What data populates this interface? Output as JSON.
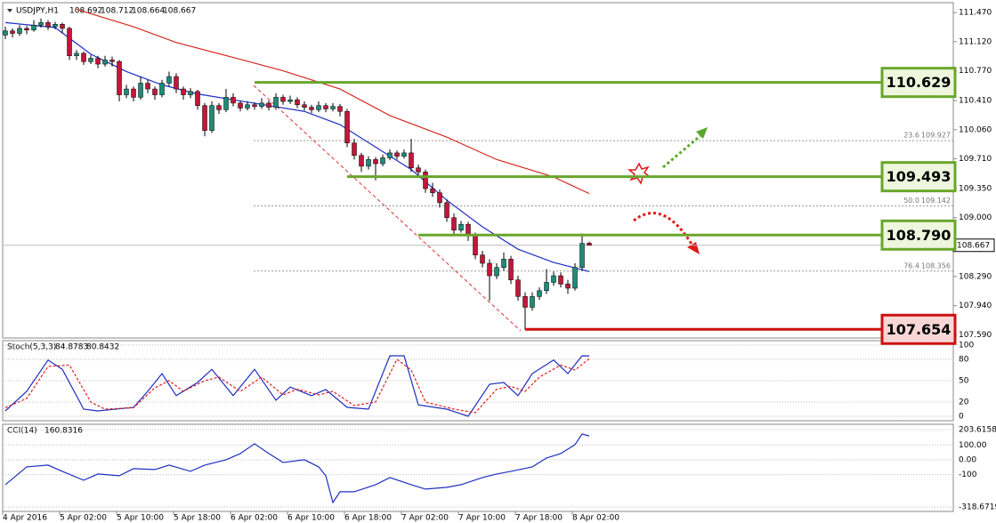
{
  "chart_data": {
    "type": "candlestick",
    "title": "USDJPY,H1",
    "ohlc": [
      108.692,
      108.712,
      108.664,
      108.667
    ],
    "ylim": [
      107.55,
      111.59
    ],
    "yticks": [
      {
        "value": 111.47,
        "label": "111.470"
      },
      {
        "value": 111.12,
        "label": "111.120"
      },
      {
        "value": 110.77,
        "label": "110.770"
      },
      {
        "value": 110.41,
        "label": "110.410"
      },
      {
        "value": 110.06,
        "label": "110.060"
      },
      {
        "value": 109.71,
        "label": "109.710"
      },
      {
        "value": 109.35,
        "label": "109.350"
      },
      {
        "value": 109.0,
        "label": "109.000"
      },
      {
        "value": 108.29,
        "label": "108.290"
      },
      {
        "value": 107.94,
        "label": "107.940"
      },
      {
        "value": 107.59,
        "label": "107.590"
      }
    ],
    "xticks": [
      {
        "value": 0,
        "label": "4 Apr 2016"
      },
      {
        "value": 8,
        "label": "5 Apr 02:00"
      },
      {
        "value": 16,
        "label": "5 Apr 10:00"
      },
      {
        "value": 24,
        "label": "5 Apr 18:00"
      },
      {
        "value": 32,
        "label": "6 Apr 02:00"
      },
      {
        "value": 40,
        "label": "6 Apr 10:00"
      },
      {
        "value": 48,
        "label": "6 Apr 18:00"
      },
      {
        "value": 56,
        "label": "7 Apr 02:00"
      },
      {
        "value": 64,
        "label": "7 Apr 10:00"
      },
      {
        "value": 72,
        "label": "7 Apr 18:00"
      },
      {
        "value": 80,
        "label": "8 Apr 02:00"
      }
    ],
    "up_color": "#1e8c78",
    "down_color": "#c4163a",
    "candles": [
      [
        111.2,
        111.3,
        111.15,
        111.25
      ],
      [
        111.25,
        111.28,
        111.17,
        111.22
      ],
      [
        111.22,
        111.32,
        111.19,
        111.28
      ],
      [
        111.28,
        111.31,
        111.21,
        111.26
      ],
      [
        111.26,
        111.38,
        111.24,
        111.32
      ],
      [
        111.32,
        111.4,
        111.29,
        111.35
      ],
      [
        111.35,
        111.38,
        111.26,
        111.3
      ],
      [
        111.3,
        111.36,
        111.27,
        111.33
      ],
      [
        111.33,
        111.35,
        111.22,
        111.28
      ],
      [
        111.28,
        111.3,
        110.9,
        110.95
      ],
      [
        110.95,
        111.02,
        110.9,
        110.98
      ],
      [
        110.98,
        111.0,
        110.84,
        110.88
      ],
      [
        110.88,
        110.96,
        110.85,
        110.92
      ],
      [
        110.92,
        110.95,
        110.8,
        110.85
      ],
      [
        110.85,
        110.95,
        110.82,
        110.9
      ],
      [
        110.9,
        110.94,
        110.82,
        110.88
      ],
      [
        110.88,
        110.9,
        110.4,
        110.48
      ],
      [
        110.48,
        110.6,
        110.44,
        110.55
      ],
      [
        110.55,
        110.58,
        110.4,
        110.45
      ],
      [
        110.45,
        110.7,
        110.42,
        110.62
      ],
      [
        110.62,
        110.66,
        110.5,
        110.55
      ],
      [
        110.55,
        110.58,
        110.42,
        110.48
      ],
      [
        110.48,
        110.66,
        110.45,
        110.62
      ],
      [
        110.62,
        110.76,
        110.58,
        110.7
      ],
      [
        110.7,
        110.74,
        110.5,
        110.55
      ],
      [
        110.55,
        110.58,
        110.42,
        110.48
      ],
      [
        110.48,
        110.56,
        110.44,
        110.52
      ],
      [
        110.52,
        110.54,
        110.3,
        110.35
      ],
      [
        110.35,
        110.38,
        109.98,
        110.05
      ],
      [
        110.05,
        110.4,
        110.02,
        110.35
      ],
      [
        110.35,
        110.38,
        110.25,
        110.3
      ],
      [
        110.3,
        110.55,
        110.27,
        110.45
      ],
      [
        110.45,
        110.5,
        110.34,
        110.38
      ],
      [
        110.38,
        110.41,
        110.28,
        110.32
      ],
      [
        110.32,
        110.4,
        110.29,
        110.36
      ],
      [
        110.36,
        110.39,
        110.3,
        110.34
      ],
      [
        110.34,
        110.44,
        110.31,
        110.38
      ],
      [
        110.38,
        110.41,
        110.29,
        110.33
      ],
      [
        110.33,
        110.5,
        110.3,
        110.45
      ],
      [
        110.45,
        110.48,
        110.36,
        110.4
      ],
      [
        110.4,
        110.47,
        110.37,
        110.42
      ],
      [
        110.42,
        110.45,
        110.32,
        110.36
      ],
      [
        110.36,
        110.4,
        110.29,
        110.33
      ],
      [
        110.33,
        110.36,
        110.26,
        110.3
      ],
      [
        110.3,
        110.4,
        110.27,
        110.35
      ],
      [
        110.35,
        110.38,
        110.27,
        110.31
      ],
      [
        110.31,
        110.38,
        110.28,
        110.34
      ],
      [
        110.34,
        110.37,
        110.22,
        110.28
      ],
      [
        110.28,
        110.31,
        109.85,
        109.9
      ],
      [
        109.9,
        109.95,
        109.7,
        109.75
      ],
      [
        109.75,
        109.78,
        109.55,
        109.62
      ],
      [
        109.62,
        109.74,
        109.58,
        109.7
      ],
      [
        109.7,
        109.73,
        109.45,
        109.65
      ],
      [
        109.65,
        109.76,
        109.62,
        109.72
      ],
      [
        109.72,
        109.82,
        109.69,
        109.78
      ],
      [
        109.78,
        109.81,
        109.7,
        109.74
      ],
      [
        109.74,
        109.82,
        109.71,
        109.78
      ],
      [
        109.78,
        109.95,
        109.55,
        109.6
      ],
      [
        109.6,
        109.64,
        109.5,
        109.55
      ],
      [
        109.55,
        109.58,
        109.3,
        109.35
      ],
      [
        109.35,
        109.42,
        109.25,
        109.3
      ],
      [
        109.3,
        109.34,
        109.12,
        109.18
      ],
      [
        109.18,
        109.22,
        108.95,
        109.0
      ],
      [
        109.0,
        109.05,
        108.8,
        108.85
      ],
      [
        108.85,
        108.96,
        108.82,
        108.92
      ],
      [
        108.92,
        108.95,
        108.72,
        108.78
      ],
      [
        108.78,
        108.82,
        108.5,
        108.55
      ],
      [
        108.55,
        108.6,
        108.4,
        108.45
      ],
      [
        108.45,
        108.5,
        108.0,
        108.3
      ],
      [
        108.3,
        108.45,
        108.26,
        108.4
      ],
      [
        108.4,
        108.58,
        108.36,
        108.5
      ],
      [
        108.5,
        108.54,
        108.2,
        108.25
      ],
      [
        108.25,
        108.3,
        108.0,
        108.05
      ],
      [
        108.05,
        108.1,
        107.65,
        107.92
      ],
      [
        107.92,
        108.1,
        107.88,
        108.05
      ],
      [
        108.05,
        108.16,
        108.01,
        108.12
      ],
      [
        108.12,
        108.38,
        108.08,
        108.22
      ],
      [
        108.22,
        108.35,
        108.18,
        108.3
      ],
      [
        108.3,
        108.34,
        108.16,
        108.2
      ],
      [
        108.2,
        108.25,
        108.08,
        108.15
      ],
      [
        108.15,
        108.45,
        108.12,
        108.4
      ],
      [
        108.4,
        108.81,
        108.36,
        108.69
      ],
      [
        108.692,
        108.712,
        108.664,
        108.667
      ]
    ],
    "ma": [
      {
        "color": "#1f2fc0",
        "x": [
          0,
          7,
          12,
          17,
          22,
          27,
          32,
          37,
          42,
          47,
          52,
          57,
          62,
          67,
          72,
          77,
          82
        ],
        "values": [
          111.35,
          111.29,
          110.97,
          110.76,
          110.6,
          110.49,
          110.42,
          110.35,
          110.28,
          110.12,
          109.85,
          109.58,
          109.21,
          108.89,
          108.62,
          108.46,
          108.35
        ]
      },
      {
        "color": "#d42a1f",
        "x": [
          10,
          18,
          24,
          32,
          39,
          47,
          54,
          62,
          69,
          77,
          82
        ],
        "values": [
          111.51,
          111.3,
          111.11,
          110.93,
          110.77,
          110.55,
          110.23,
          109.97,
          109.7,
          109.49,
          109.29
        ]
      }
    ],
    "levels": [
      {
        "price": 110.629,
        "color": "#6aa62c",
        "fill": "#eef7dd",
        "start": 35
      },
      {
        "price": 109.493,
        "color": "#6aa62c",
        "fill": "#eef7dd",
        "start": 48
      },
      {
        "price": {
          "value": 108.79,
          "label": "108.790"
        },
        "color": "#6aa62c",
        "fill": "#eef7dd",
        "start": 58
      },
      {
        "price": 107.654,
        "color": "#cc1111",
        "fill": "#f8d6d6",
        "start": 73
      }
    ],
    "fib": [
      {
        "level": "23.6",
        "price": 109.927
      },
      {
        "level": "50.0",
        "price": 109.142
      },
      {
        "level": "76.4",
        "price": 108.356
      }
    ],
    "stoch": {
      "title": "Stoch(5,3,3)",
      "ylim": [
        -6.25,
        106.25
      ],
      "yticks": [
        100,
        80,
        50,
        20,
        0
      ],
      "series": [
        {
          "color": "#1f2fc0",
          "x": [
            0,
            3,
            6,
            8,
            11,
            13,
            18,
            20,
            22,
            24,
            27,
            29,
            32,
            35,
            38,
            40,
            43,
            45,
            48,
            51,
            54,
            56,
            58,
            62,
            65,
            68,
            70,
            72,
            74,
            77,
            79,
            81,
            82
          ],
          "values": [
            7.5,
            35,
            79,
            66,
            10,
            7.5,
            12.5,
            35,
            60,
            29,
            47.5,
            66,
            29,
            66,
            22.5,
            41,
            29,
            37.5,
            12.5,
            10,
            85,
            85,
            16,
            10,
            0,
            45,
            47.5,
            29,
            60,
            79,
            60,
            85,
            84.8783
          ]
        },
        {
          "color": "#e02020",
          "dash": true,
          "x": [
            0,
            3,
            6,
            9,
            12,
            14,
            18,
            21,
            23,
            25,
            28,
            30,
            33,
            36,
            39,
            41,
            44,
            46,
            49,
            52,
            55,
            57,
            59,
            63,
            66,
            69,
            71,
            73,
            75,
            78,
            80,
            82
          ],
          "values": [
            12,
            25,
            70,
            72,
            20,
            10,
            12,
            40,
            50,
            35,
            50,
            55,
            35,
            55,
            30,
            38,
            30,
            35,
            15,
            20,
            80,
            65,
            20,
            10,
            5,
            38,
            42,
            35,
            55,
            72,
            65,
            80.8432
          ]
        }
      ]
    },
    "cci": {
      "title": "CCI(14)",
      "ylim": [
        -348.7,
        239.6
      ],
      "yticks": [
        203.6158,
        {
          "value": 100,
          "label": "100.00"
        },
        {
          "value": 0,
          "label": "0.00"
        },
        -100,
        -318.6719
      ],
      "series": [
        {
          "color": "#1f2fc0",
          "x": [
            0,
            3,
            6,
            8,
            11,
            13,
            16,
            18,
            21,
            23,
            26,
            28,
            31,
            33,
            35,
            37,
            39,
            42,
            44,
            45,
            46,
            47,
            49,
            52,
            54,
            57,
            59,
            62,
            64,
            67,
            69,
            71,
            74,
            76,
            78,
            80,
            81,
            82
          ],
          "values": [
            -168,
            -48,
            -36,
            -78,
            -138,
            -96,
            -108,
            -60,
            -66,
            -36,
            -78,
            -36,
            0,
            42,
            108,
            42,
            -18,
            0,
            -48,
            -108,
            -288,
            -216,
            -216,
            -168,
            -120,
            -168,
            -198,
            -186,
            -168,
            -120,
            -96,
            -78,
            -48,
            12,
            42,
            102,
            174,
            160.8316
          ]
        }
      ]
    }
  }
}
